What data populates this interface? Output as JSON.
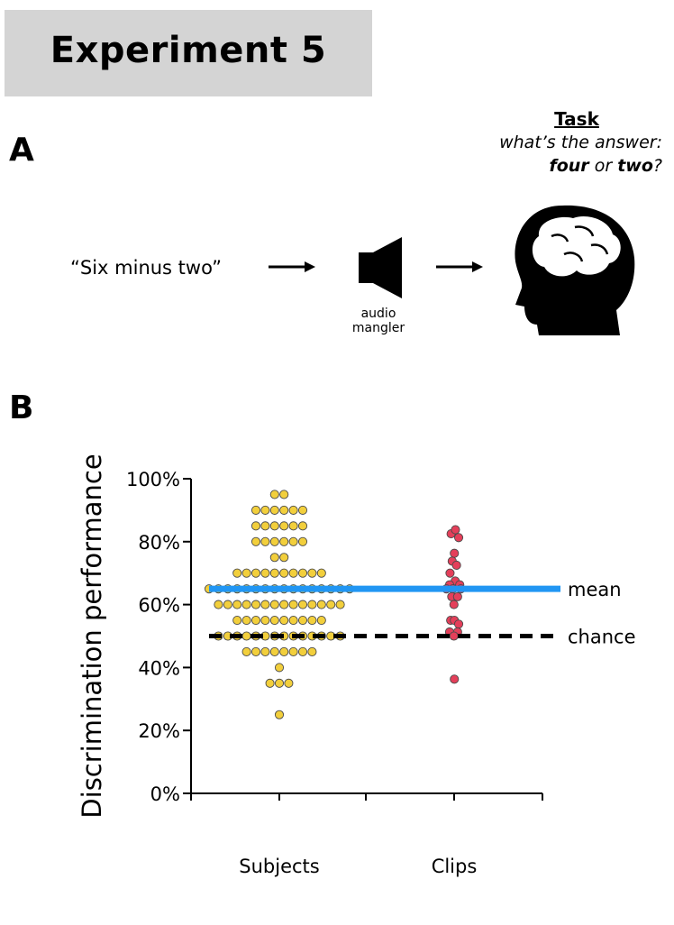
{
  "figure": {
    "title": "Experiment 5",
    "panel_a_label": "A",
    "panel_b_label": "B",
    "task": {
      "heading": "Task",
      "question_prefix": "what’s the answer:",
      "option_1": "four",
      "connector": "or",
      "option_2": "two",
      "question_suffix": "?"
    },
    "stimulus_quote": "“Six minus two”",
    "mangler_label_line1": "audio",
    "mangler_label_line2": "mangler",
    "icons": [
      "arrow-icon",
      "speaker-icon",
      "arrow-icon",
      "head-brain-icon"
    ]
  },
  "chart_data": {
    "type": "scatter",
    "ylabel": "Discrimination performance",
    "xlabel": "",
    "ylim": [
      0,
      100
    ],
    "yticks": [
      0,
      20,
      40,
      60,
      80,
      100
    ],
    "ytick_labels": [
      "0%",
      "20%",
      "40%",
      "60%",
      "80%",
      "100%"
    ],
    "categories": [
      "Subjects",
      "Clips"
    ],
    "grid": false,
    "series": [
      {
        "name": "Subjects",
        "color": "#f2cf3c",
        "bins": [
          {
            "y": 95,
            "n": 2
          },
          {
            "y": 90,
            "n": 6
          },
          {
            "y": 85,
            "n": 6
          },
          {
            "y": 80,
            "n": 6
          },
          {
            "y": 75,
            "n": 2
          },
          {
            "y": 70,
            "n": 10
          },
          {
            "y": 65,
            "n": 16
          },
          {
            "y": 60,
            "n": 14
          },
          {
            "y": 55,
            "n": 10
          },
          {
            "y": 50,
            "n": 14
          },
          {
            "y": 45,
            "n": 8
          },
          {
            "y": 40,
            "n": 1
          },
          {
            "y": 35,
            "n": 3
          },
          {
            "y": 25,
            "n": 1
          }
        ]
      },
      {
        "name": "Clips",
        "color": "#e43f5a",
        "points": [
          {
            "dx": -0.28,
            "y": 82.5
          },
          {
            "dx": 0.12,
            "y": 83.8
          },
          {
            "dx": 0.42,
            "y": 81.3
          },
          {
            "dx": 0.02,
            "y": 76.3
          },
          {
            "dx": -0.18,
            "y": 73.8
          },
          {
            "dx": 0.22,
            "y": 72.5
          },
          {
            "dx": -0.38,
            "y": 70.0
          },
          {
            "dx": 0.1,
            "y": 67.5
          },
          {
            "dx": -0.42,
            "y": 66.3
          },
          {
            "dx": 0.52,
            "y": 66.3
          },
          {
            "dx": -0.12,
            "y": 65.0
          },
          {
            "dx": -0.72,
            "y": 65.0
          },
          {
            "dx": 0.62,
            "y": 65.0
          },
          {
            "dx": -0.22,
            "y": 62.5
          },
          {
            "dx": 0.32,
            "y": 62.5
          },
          {
            "dx": -0.02,
            "y": 60.0
          },
          {
            "dx": -0.32,
            "y": 55.0
          },
          {
            "dx": 0.02,
            "y": 55.0
          },
          {
            "dx": 0.42,
            "y": 53.8
          },
          {
            "dx": -0.42,
            "y": 51.3
          },
          {
            "dx": 0.32,
            "y": 51.3
          },
          {
            "dx": -0.02,
            "y": 50.0
          },
          {
            "dx": 0.02,
            "y": 36.3
          }
        ]
      }
    ],
    "reference_lines": [
      {
        "name": "mean",
        "y": 65,
        "color": "#2196f3",
        "style": "solid"
      },
      {
        "name": "chance",
        "y": 50,
        "color": "#000000",
        "style": "dashed"
      }
    ]
  }
}
